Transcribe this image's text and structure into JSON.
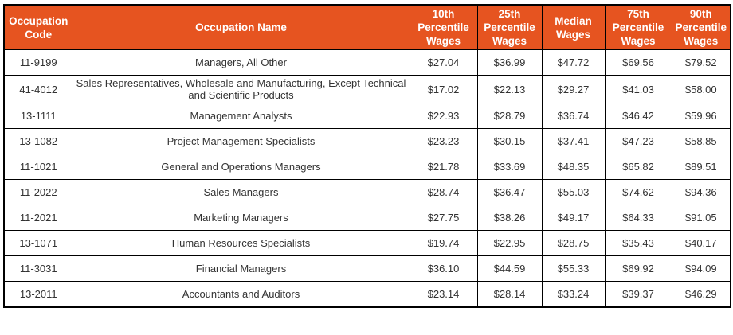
{
  "colors": {
    "header_bg": "#E65420",
    "header_text": "#FFFFFF",
    "cell_text": "#333333",
    "border": "#000000"
  },
  "table": {
    "columns": [
      "Occupation Code",
      "Occupation Name",
      "10th Percentile Wages",
      "25th Percentile Wages",
      "Median Wages",
      "75th Percentile Wages",
      "90th Percentile Wages"
    ],
    "column_keys": [
      "occupation-code",
      "occupation-name",
      "10th-percentile-wages",
      "25th-percentile-wages",
      "median-wages",
      "75th-percentile-wages",
      "90th-percentile-wages"
    ],
    "rows": [
      [
        "11-9199",
        "Managers, All Other",
        "$27.04",
        "$36.99",
        "$47.72",
        "$69.56",
        "$79.52"
      ],
      [
        "41-4012",
        "Sales Representatives, Wholesale and Manufacturing, Except Technical and Scientific Products",
        "$17.02",
        "$22.13",
        "$29.27",
        "$41.03",
        "$58.00"
      ],
      [
        "13-1111",
        "Management Analysts",
        "$22.93",
        "$28.79",
        "$36.74",
        "$46.42",
        "$59.96"
      ],
      [
        "13-1082",
        "Project Management Specialists",
        "$23.23",
        "$30.15",
        "$37.41",
        "$47.23",
        "$58.85"
      ],
      [
        "11-1021",
        "General and Operations Managers",
        "$21.78",
        "$33.69",
        "$48.35",
        "$65.82",
        "$89.51"
      ],
      [
        "11-2022",
        "Sales Managers",
        "$28.74",
        "$36.47",
        "$55.03",
        "$74.62",
        "$94.36"
      ],
      [
        "11-2021",
        "Marketing Managers",
        "$27.75",
        "$38.26",
        "$49.17",
        "$64.33",
        "$91.05"
      ],
      [
        "13-1071",
        "Human Resources Specialists",
        "$19.74",
        "$22.95",
        "$28.75",
        "$35.43",
        "$40.17"
      ],
      [
        "11-3031",
        "Financial Managers",
        "$36.10",
        "$44.59",
        "$55.33",
        "$69.92",
        "$94.09"
      ],
      [
        "13-2011",
        "Accountants and Auditors",
        "$23.14",
        "$28.14",
        "$33.24",
        "$39.37",
        "$46.29"
      ]
    ]
  }
}
